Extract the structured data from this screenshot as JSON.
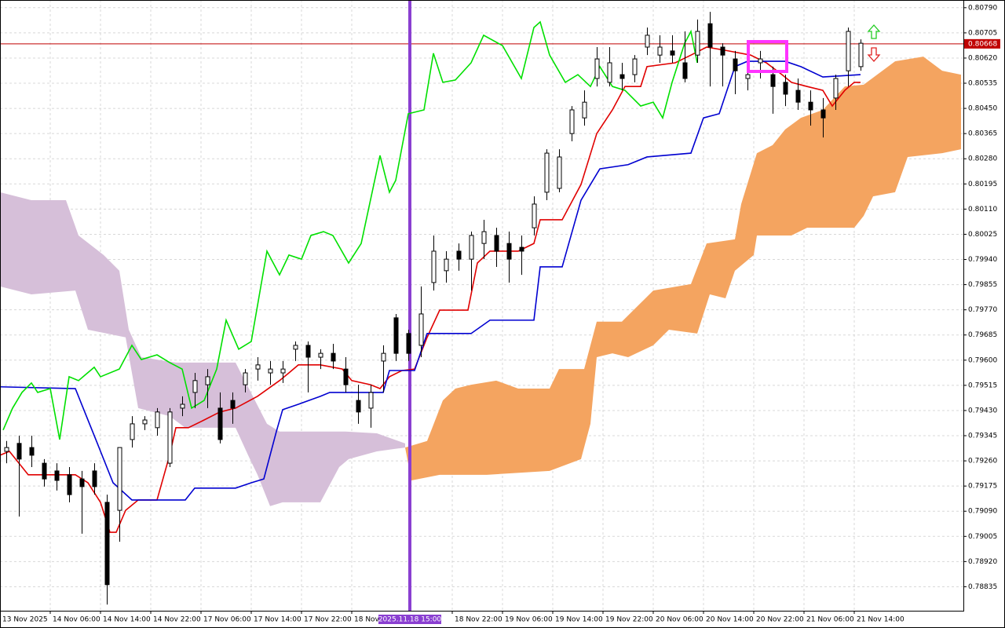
{
  "chart_data": {
    "type": "candlestick",
    "xlim": [
      0,
      153.375
    ],
    "ylim": [
      0.78754,
      0.80816
    ],
    "grid": true,
    "yticks": [
      0.78835,
      {
        "value": 0.7892,
        "label": "0.78920"
      },
      0.79005,
      {
        "value": 0.7909,
        "label": "0.79090"
      },
      0.79175,
      {
        "value": 0.7926,
        "label": "0.79260"
      },
      0.79345,
      {
        "value": 0.7943,
        "label": "0.79430"
      },
      0.79515,
      {
        "value": 0.796,
        "label": "0.79600"
      },
      0.79685,
      {
        "value": 0.7977,
        "label": "0.79770"
      },
      0.79855,
      {
        "value": 0.7994,
        "label": "0.79940"
      },
      0.80025,
      {
        "value": 0.8011,
        "label": "0.80110"
      },
      0.80195,
      {
        "value": 0.8028,
        "label": "0.80280"
      },
      0.80365,
      {
        "value": 0.8045,
        "label": "0.80450"
      },
      0.80535,
      {
        "value": 0.8062,
        "label": "0.80620"
      },
      0.80705,
      {
        "value": 0.8079,
        "label": "0.80790"
      }
    ],
    "xticks": [
      {
        "value": 0,
        "label": "13 Nov 2025"
      },
      {
        "value": 8,
        "label": "14 Nov 06:00"
      },
      {
        "value": 16,
        "label": "14 Nov 14:00"
      },
      {
        "value": 24,
        "label": "14 Nov 22:00"
      },
      {
        "value": 32,
        "label": "17 Nov 06:00"
      },
      {
        "value": 40,
        "label": "17 Nov 14:00"
      },
      {
        "value": 48,
        "label": "17 Nov 22:00"
      },
      {
        "value": 56,
        "label": "18 Nov"
      },
      {
        "value": 72,
        "label": "18 Nov 22:00"
      },
      {
        "value": 80,
        "label": "19 Nov 06:00"
      },
      {
        "value": 88,
        "label": "19 Nov 14:00"
      },
      {
        "value": 96,
        "label": "19 Nov 22:00"
      },
      {
        "value": 104,
        "label": "20 Nov 06:00"
      },
      {
        "value": 112,
        "label": "20 Nov 14:00"
      },
      {
        "value": 120,
        "label": "20 Nov 22:00"
      },
      {
        "value": 128,
        "label": "21 Nov 06:00"
      },
      {
        "value": 136,
        "label": "21 Nov 14:00"
      }
    ],
    "up_color": "#ffffff",
    "down_color": "#000000",
    "candles": {
      "x": [
        1,
        3,
        5,
        7,
        9,
        11,
        13,
        15,
        17,
        19,
        21,
        23,
        25,
        27,
        29,
        31,
        33,
        35,
        37,
        39,
        41,
        43,
        45,
        47,
        49,
        51,
        53,
        55,
        57,
        59,
        61,
        63,
        65,
        67,
        69,
        71,
        73,
        75,
        77,
        79,
        81,
        83,
        85,
        87,
        89,
        91,
        93,
        95,
        97,
        99,
        101,
        103,
        105,
        107,
        109,
        111,
        113,
        115,
        117,
        119,
        121,
        123,
        125,
        127,
        129,
        131,
        133,
        135,
        137
      ],
      "open": [
        0.79292,
        0.79319,
        0.79305,
        0.79252,
        0.79226,
        0.79213,
        0.79199,
        0.79226,
        0.7912,
        0.79093,
        0.79332,
        0.79385,
        0.79372,
        0.79252,
        0.79438,
        0.79491,
        0.79517,
        0.79438,
        0.79464,
        0.79517,
        0.7957,
        0.79557,
        0.79557,
        0.79637,
        0.7965,
        0.7961,
        0.79623,
        0.7957,
        0.79464,
        0.79438,
        0.79597,
        0.79743,
        0.7969,
        0.7965,
        0.79862,
        0.79902,
        0.79968,
        0.79941,
        0.79994,
        0.80021,
        0.79994,
        0.79981,
        0.80047,
        0.80167,
        0.8018,
        0.80365,
        0.80418,
        0.80551,
        0.80538,
        0.80564,
        0.80564,
        0.80657,
        0.8063,
        0.80644,
        0.80604,
        0.8063,
        0.80736,
        0.80657,
        0.80617,
        0.80551,
        0.80604,
        0.80564,
        0.80538,
        0.80511,
        0.80471,
        0.80445,
        0.80485,
        0.80577,
        0.80591
      ],
      "high": [
        0.79327,
        0.79345,
        0.79345,
        0.79266,
        0.79252,
        0.79239,
        0.79226,
        0.79252,
        0.79146,
        0.79173,
        0.79411,
        0.79411,
        0.79438,
        0.79438,
        0.79478,
        0.79557,
        0.7957,
        0.79491,
        0.79491,
        0.7957,
        0.7961,
        0.79597,
        0.79597,
        0.79663,
        0.79663,
        0.79637,
        0.79655,
        0.7961,
        0.79517,
        0.79517,
        0.7965,
        0.79756,
        0.79703,
        0.79849,
        0.80021,
        0.79968,
        0.79994,
        0.80034,
        0.80074,
        0.80047,
        0.80034,
        0.80021,
        0.80153,
        0.80312,
        0.80312,
        0.80458,
        0.80511,
        0.80657,
        0.80657,
        0.80604,
        0.8063,
        0.80723,
        0.80697,
        0.80697,
        0.8071,
        0.8075,
        0.80776,
        0.8067,
        0.80644,
        0.80617,
        0.80644,
        0.80591,
        0.80564,
        0.80551,
        0.80511,
        0.80485,
        0.80564,
        0.80723,
        0.80683
      ],
      "low": [
        0.79252,
        0.79072,
        0.79239,
        0.79173,
        0.7916,
        0.7912,
        0.79014,
        0.79146,
        0.78775,
        0.78987,
        0.79305,
        0.79364,
        0.79345,
        0.79239,
        0.79411,
        0.79438,
        0.79438,
        0.79319,
        0.79385,
        0.79491,
        0.79531,
        0.79517,
        0.79523,
        0.79597,
        0.79491,
        0.7957,
        0.7957,
        0.79491,
        0.79385,
        0.79372,
        0.79491,
        0.79597,
        0.79597,
        0.7961,
        0.79835,
        0.79862,
        0.79902,
        0.79835,
        0.79941,
        0.79915,
        0.79862,
        0.79888,
        0.80021,
        0.8014,
        0.80167,
        0.80339,
        0.80392,
        0.80524,
        0.80524,
        0.80511,
        0.80538,
        0.8063,
        0.80604,
        0.80604,
        0.80538,
        0.80604,
        0.80524,
        0.80524,
        0.80498,
        0.80511,
        0.80551,
        0.80432,
        0.80458,
        0.80445,
        0.80392,
        0.80352,
        0.80445,
        0.80524,
        0.80577
      ],
      "close": [
        0.79305,
        0.79266,
        0.79279,
        0.79199,
        0.79194,
        0.79146,
        0.79173,
        0.79173,
        0.78842,
        0.79305,
        0.79385,
        0.79398,
        0.79425,
        0.79425,
        0.79451,
        0.79531,
        0.79544,
        0.79332,
        0.79438,
        0.79557,
        0.79584,
        0.7957,
        0.7957,
        0.7965,
        0.7961,
        0.79623,
        0.79597,
        0.79517,
        0.79425,
        0.79491,
        0.79623,
        0.79623,
        0.79623,
        0.79756,
        0.79968,
        0.79941,
        0.79941,
        0.80021,
        0.80034,
        0.79968,
        0.79941,
        0.79968,
        0.80127,
        0.80299,
        0.80286,
        0.80445,
        0.80471,
        0.80617,
        0.80604,
        0.80551,
        0.80617,
        0.80697,
        0.80657,
        0.8063,
        0.80551,
        0.8071,
        0.80657,
        0.8063,
        0.80577,
        0.80564,
        0.80617,
        0.80524,
        0.80498,
        0.80471,
        0.80445,
        0.80418,
        0.80551,
        0.8071,
        0.8067
      ]
    },
    "lines": [
      {
        "color": "#e00000",
        "x": [
          0,
          1.5,
          4.5,
          12,
          14,
          16,
          17.5,
          18.5,
          20,
          22,
          25,
          27,
          28,
          30,
          32.5,
          35,
          37.5,
          41,
          44.5,
          46,
          47.5,
          51,
          54.5,
          56,
          59,
          60.5,
          62,
          64,
          66,
          68,
          70,
          74.5,
          76,
          78,
          82.5,
          85,
          86,
          89.5,
          92.5,
          95,
          97.5,
          99.5,
          102,
          103,
          107.5,
          110,
          112.5,
          116,
          119.5,
          122,
          124.5,
          126,
          128.5,
          131,
          132.5,
          134.5,
          136,
          137
        ],
        "values": [
          0.79279,
          0.79292,
          0.79213,
          0.79213,
          0.79186,
          0.7912,
          0.79019,
          0.79019,
          0.79093,
          0.79128,
          0.79128,
          0.79279,
          0.79372,
          0.79372,
          0.79398,
          0.79425,
          0.79438,
          0.79478,
          0.79531,
          0.79557,
          0.79584,
          0.79584,
          0.7957,
          0.79531,
          0.79517,
          0.79504,
          0.79544,
          0.79565,
          0.7957,
          0.79677,
          0.79769,
          0.79769,
          0.79928,
          0.79968,
          0.79968,
          0.79994,
          0.80074,
          0.80074,
          0.80193,
          0.80365,
          0.80445,
          0.80524,
          0.80524,
          0.80591,
          0.80604,
          0.8063,
          0.80657,
          0.80644,
          0.8063,
          0.80604,
          0.80564,
          0.80538,
          0.80524,
          0.80511,
          0.80458,
          0.80511,
          0.80538,
          0.80538
        ]
      },
      {
        "color": "#0000d0",
        "x": [
          0,
          12,
          13,
          15.5,
          18,
          21,
          29.5,
          31,
          37.5,
          40,
          42,
          44,
          45,
          47.5,
          51,
          52.5,
          61,
          62,
          66,
          68,
          75,
          78,
          85,
          86,
          89.5,
          92.5,
          95.5,
          100,
          103,
          110,
          112,
          114.5,
          117,
          119,
          125,
          127.5,
          131,
          137
        ],
        "values": [
          0.7951,
          0.79504,
          0.79451,
          0.79319,
          0.79186,
          0.79128,
          0.79128,
          0.79168,
          0.79168,
          0.79186,
          0.79199,
          0.79359,
          0.79433,
          0.79451,
          0.79478,
          0.79491,
          0.79491,
          0.79565,
          0.79565,
          0.7969,
          0.7969,
          0.79735,
          0.79735,
          0.79915,
          0.79915,
          0.8014,
          0.80246,
          0.8026,
          0.80286,
          0.80299,
          0.80418,
          0.80432,
          0.80591,
          0.80609,
          0.80609,
          0.80591,
          0.80556,
          0.80564
        ]
      },
      {
        "color": "#00e000",
        "x": [
          0.5,
          2,
          3.5,
          5,
          6,
          8,
          9.5,
          11,
          12.5,
          15,
          16,
          19,
          21,
          22.5,
          25,
          27,
          29,
          30.5,
          32.5,
          34.5,
          36,
          38,
          40,
          42.5,
          44.5,
          46,
          48,
          49.5,
          51.5,
          53,
          55.5,
          57.5,
          60.5,
          62,
          63,
          65,
          67.5,
          69,
          70.5,
          72.5,
          75,
          77,
          80,
          83,
          85,
          86,
          87.5,
          90,
          92,
          94,
          95.5,
          97.5,
          99.5,
          102,
          104,
          105.5,
          107,
          109,
          110,
          111
        ],
        "values": [
          0.79364,
          0.79438,
          0.79491,
          0.79523,
          0.79491,
          0.79504,
          0.79332,
          0.79544,
          0.79531,
          0.79576,
          0.79544,
          0.7957,
          0.7965,
          0.79602,
          0.79618,
          0.79592,
          0.7957,
          0.79438,
          0.79464,
          0.7957,
          0.79735,
          0.79637,
          0.79663,
          0.79968,
          0.79888,
          0.79955,
          0.79941,
          0.80021,
          0.80034,
          0.80021,
          0.79928,
          0.79994,
          0.80291,
          0.80167,
          0.80207,
          0.80432,
          0.80445,
          0.80636,
          0.80538,
          0.80546,
          0.80604,
          0.80697,
          0.80662,
          0.80551,
          0.80723,
          0.80742,
          0.8063,
          0.80538,
          0.80564,
          0.80524,
          0.80591,
          0.80524,
          0.80511,
          0.80458,
          0.80471,
          0.80418,
          0.80538,
          0.8067,
          0.8071,
          0.80604
        ]
      }
    ],
    "clouds": [
      {
        "color": "#d6bfd9",
        "upper": {
          "x": [
            0,
            5,
            10.5,
            12.5,
            16.5,
            19,
            20.5,
            22.5,
            28,
            37.5,
            42.5,
            44.5,
            55,
            60,
            64.5
          ],
          "values": [
            0.80167,
            0.8014,
            0.8014,
            0.80021,
            0.79955,
            0.79902,
            0.79703,
            0.7961,
            0.79592,
            0.79592,
            0.79385,
            0.79359,
            0.79359,
            0.79353,
            0.79319
          ]
        },
        "lower": {
          "x": [
            0,
            5,
            12,
            14,
            20,
            22,
            27,
            29.5,
            37.5,
            39.5,
            41,
            43,
            45,
            51,
            54,
            55.5,
            60,
            64.5
          ],
          "values": [
            0.79849,
            0.79822,
            0.79835,
            0.79703,
            0.79677,
            0.79438,
            0.79411,
            0.79372,
            0.79372,
            0.79279,
            0.79213,
            0.79107,
            0.7912,
            0.7912,
            0.79239,
            0.79266,
            0.79292,
            0.79305
          ]
        }
      },
      {
        "color": "#f4a460",
        "upper": {
          "x": [
            64.5,
            68,
            70.5,
            72.5,
            75,
            79,
            82.5,
            87.5,
            89,
            93,
            95,
            99,
            104,
            110,
            112.5,
            117,
            118,
            120.5,
            123,
            125,
            127.5,
            131,
            134.5,
            137.5,
            142.5,
            147,
            150,
            153
          ],
          "values": [
            0.79305,
            0.79327,
            0.79464,
            0.79504,
            0.79517,
            0.79531,
            0.79504,
            0.79504,
            0.7957,
            0.7957,
            0.7973,
            0.7973,
            0.79835,
            0.79857,
            0.79994,
            0.80008,
            0.80127,
            0.80299,
            0.80326,
            0.80379,
            0.80418,
            0.80445,
            0.80524,
            0.8053,
            0.80609,
            0.80625,
            0.80577,
            0.80564
          ]
        },
        "lower": {
          "x": [
            64.5,
            65.5,
            70,
            77.5,
            87.5,
            92.5,
            94,
            95,
            97.5,
            100,
            104,
            106.5,
            111,
            113,
            115.5,
            117,
            120,
            120.5,
            126,
            128.5,
            136,
            137.5,
            139,
            142.5,
            144.5,
            150,
            153
          ],
          "values": [
            0.79305,
            0.79194,
            0.79213,
            0.79213,
            0.79226,
            0.79266,
            0.79385,
            0.7961,
            0.79623,
            0.7961,
            0.7965,
            0.79703,
            0.7969,
            0.79822,
            0.79809,
            0.79902,
            0.79955,
            0.80021,
            0.80021,
            0.80047,
            0.80047,
            0.80087,
            0.80153,
            0.80167,
            0.80286,
            0.80299,
            0.80312
          ]
        }
      }
    ],
    "last_price": 0.80668,
    "last_price_color": "#c00000",
    "marker": {
      "x": 65.25,
      "label": "2025.11.18 15:00",
      "color": "#8a3fd1"
    }
  }
}
